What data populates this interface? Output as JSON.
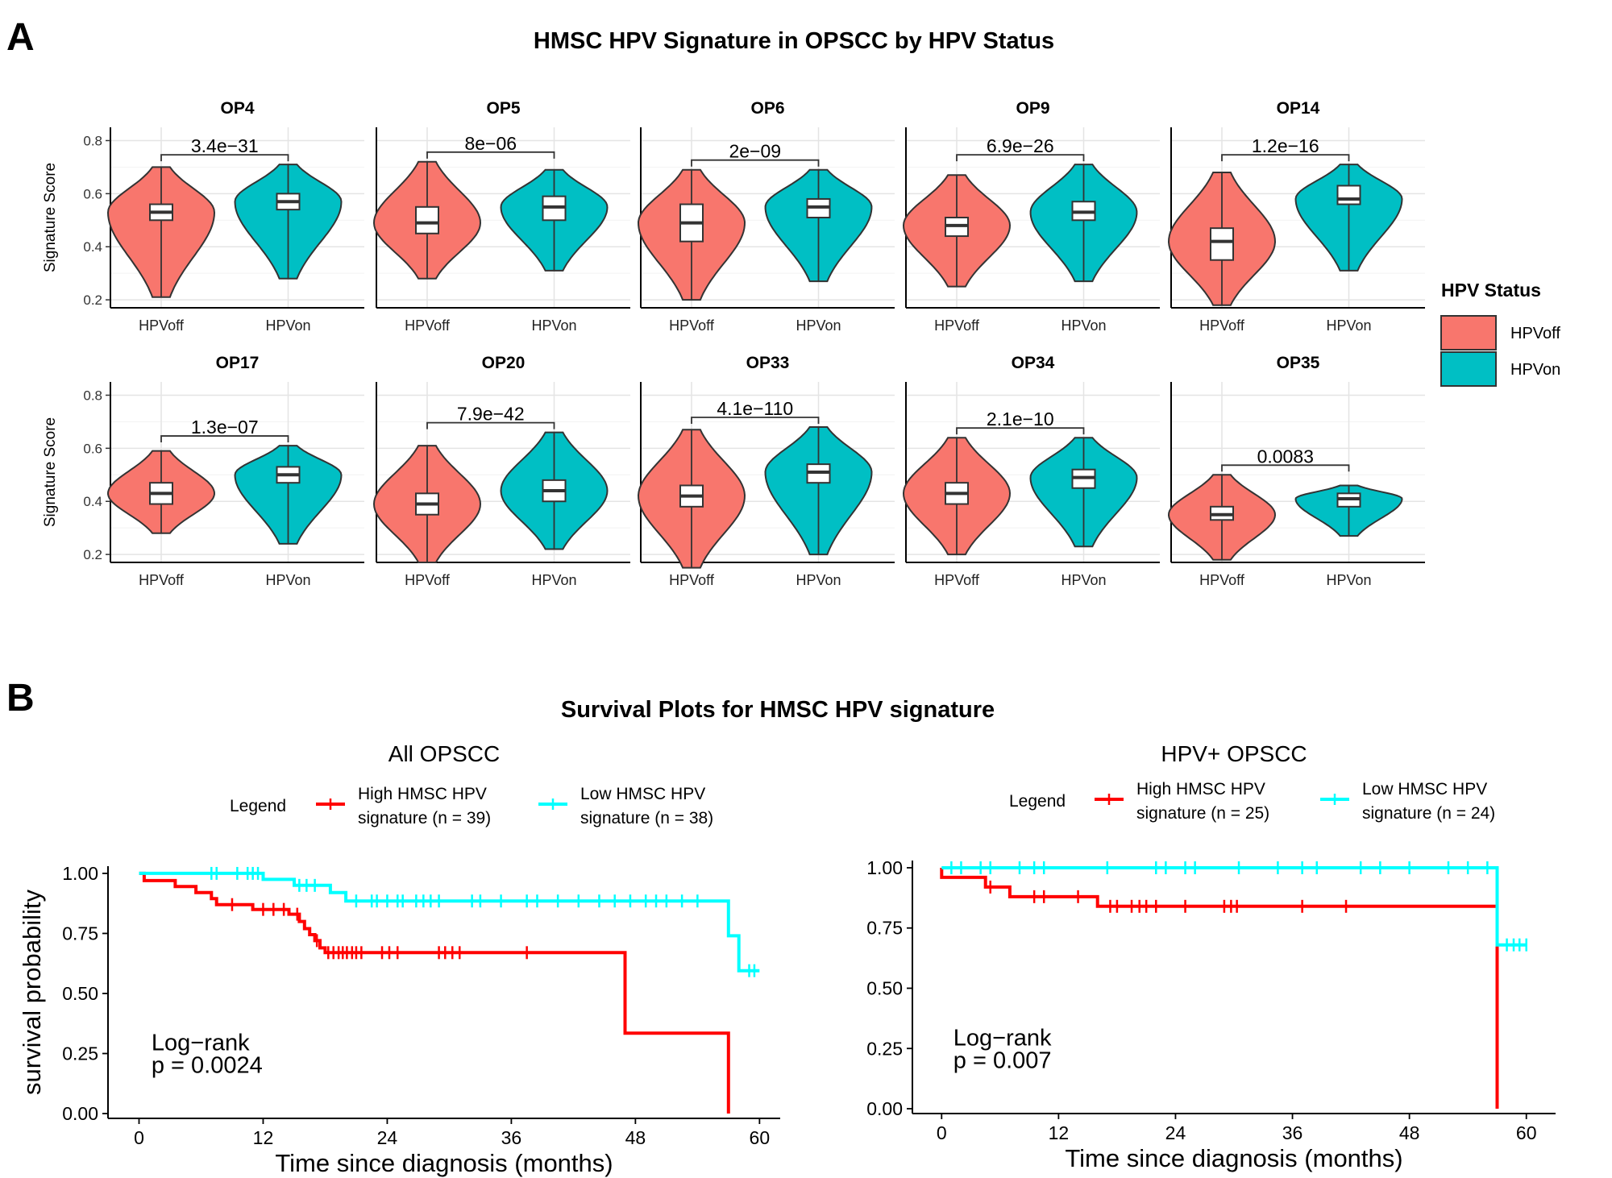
{
  "panel_a": {
    "letter": "A",
    "title": "HMSC HPV Signature in OPSCC by HPV Status",
    "legend": {
      "title": "HPV Status",
      "items": [
        {
          "label": "HPVoff",
          "color": "#F8766D"
        },
        {
          "label": "HPVon",
          "color": "#00BFC4"
        }
      ]
    }
  },
  "panel_b": {
    "letter": "B",
    "title": "Survival Plots for HMSC HPV signature"
  },
  "colors": {
    "hpv_off": "#F8766D",
    "hpv_on": "#00BFC4",
    "km_high": "#FF0000",
    "km_low": "#00FFFF"
  },
  "chart_data": [
    {
      "type": "violin",
      "ylabel": "Signature Score",
      "ylim": [
        0.17,
        0.85
      ],
      "yticks": [
        0.2,
        0.4,
        0.6,
        0.8
      ],
      "categories": [
        "HPVoff",
        "HPVon"
      ],
      "facets": [
        {
          "name": "OP4",
          "p": "3.4e−31",
          "groups": [
            {
              "min": 0.21,
              "q1": 0.5,
              "median": 0.53,
              "q3": 0.56,
              "max": 0.7
            },
            {
              "min": 0.28,
              "q1": 0.54,
              "median": 0.57,
              "q3": 0.6,
              "max": 0.71
            }
          ]
        },
        {
          "name": "OP5",
          "p": "8e−06",
          "groups": [
            {
              "min": 0.28,
              "q1": 0.45,
              "median": 0.49,
              "q3": 0.55,
              "max": 0.72
            },
            {
              "min": 0.31,
              "q1": 0.5,
              "median": 0.55,
              "q3": 0.59,
              "max": 0.69
            }
          ]
        },
        {
          "name": "OP6",
          "p": "2e−09",
          "groups": [
            {
              "min": 0.2,
              "q1": 0.42,
              "median": 0.49,
              "q3": 0.56,
              "max": 0.69
            },
            {
              "min": 0.27,
              "q1": 0.51,
              "median": 0.55,
              "q3": 0.58,
              "max": 0.69
            }
          ]
        },
        {
          "name": "OP9",
          "p": "6.9e−26",
          "groups": [
            {
              "min": 0.25,
              "q1": 0.44,
              "median": 0.48,
              "q3": 0.51,
              "max": 0.67
            },
            {
              "min": 0.27,
              "q1": 0.5,
              "median": 0.53,
              "q3": 0.57,
              "max": 0.71
            }
          ]
        },
        {
          "name": "OP14",
          "p": "1.2e−16",
          "groups": [
            {
              "min": 0.18,
              "q1": 0.35,
              "median": 0.42,
              "q3": 0.47,
              "max": 0.68
            },
            {
              "min": 0.31,
              "q1": 0.56,
              "median": 0.58,
              "q3": 0.63,
              "max": 0.71
            }
          ]
        },
        {
          "name": "OP17",
          "p": "1.3e−07",
          "groups": [
            {
              "min": 0.28,
              "q1": 0.39,
              "median": 0.43,
              "q3": 0.47,
              "max": 0.59
            },
            {
              "min": 0.24,
              "q1": 0.47,
              "median": 0.5,
              "q3": 0.53,
              "max": 0.61
            }
          ]
        },
        {
          "name": "OP20",
          "p": "7.9e−42",
          "groups": [
            {
              "min": 0.17,
              "q1": 0.35,
              "median": 0.39,
              "q3": 0.43,
              "max": 0.61
            },
            {
              "min": 0.22,
              "q1": 0.4,
              "median": 0.44,
              "q3": 0.48,
              "max": 0.66
            }
          ]
        },
        {
          "name": "OP33",
          "p": "4.1e−110",
          "groups": [
            {
              "min": 0.15,
              "q1": 0.38,
              "median": 0.42,
              "q3": 0.46,
              "max": 0.67
            },
            {
              "min": 0.2,
              "q1": 0.47,
              "median": 0.51,
              "q3": 0.54,
              "max": 0.68
            }
          ]
        },
        {
          "name": "OP34",
          "p": "2.1e−10",
          "groups": [
            {
              "min": 0.2,
              "q1": 0.39,
              "median": 0.43,
              "q3": 0.47,
              "max": 0.64
            },
            {
              "min": 0.23,
              "q1": 0.45,
              "median": 0.49,
              "q3": 0.52,
              "max": 0.64
            }
          ]
        },
        {
          "name": "OP35",
          "p": "0.0083",
          "groups": [
            {
              "min": 0.18,
              "q1": 0.33,
              "median": 0.35,
              "q3": 0.38,
              "max": 0.5
            },
            {
              "min": 0.27,
              "q1": 0.38,
              "median": 0.41,
              "q3": 0.43,
              "max": 0.46
            }
          ]
        }
      ]
    },
    {
      "type": "line",
      "step": true,
      "title": "All OPSCC",
      "xlabel": "Time since diagnosis (months)",
      "ylabel": "survival probability",
      "xlim": [
        -3,
        62
      ],
      "ylim": [
        -0.02,
        1.03
      ],
      "xticks": [
        0,
        12,
        24,
        36,
        48,
        60
      ],
      "yticks": [
        "0.00",
        "0.25",
        "0.50",
        "0.75",
        "1.00"
      ],
      "legend": {
        "title": "Legend",
        "placement": "top"
      },
      "annotation": [
        "Log−rank",
        "p = 0.0024"
      ],
      "series": [
        {
          "name": "High HMSC HPV signature (n = 39)",
          "label_lines": [
            "High HMSC HPV",
            "signature (n = 39)"
          ],
          "color": "#FF0000",
          "steps": [
            [
              0,
              1.0
            ],
            [
              0.5,
              0.97
            ],
            [
              3.5,
              0.945
            ],
            [
              5.5,
              0.92
            ],
            [
              7,
              0.895
            ],
            [
              7.5,
              0.87
            ],
            [
              11,
              0.85
            ],
            [
              14.5,
              0.83
            ],
            [
              15.5,
              0.8
            ],
            [
              16,
              0.77
            ],
            [
              16.5,
              0.745
            ],
            [
              17,
              0.72
            ],
            [
              17.5,
              0.69
            ],
            [
              18,
              0.67
            ],
            [
              47,
              0.67
            ],
            [
              47,
              0.335
            ],
            [
              57,
              0.335
            ],
            [
              57,
              0.0
            ]
          ],
          "censor": [
            9,
            12,
            13,
            14,
            15.3,
            17.2,
            18.3,
            18.8,
            19.3,
            19.7,
            20.1,
            20.6,
            21,
            21.5,
            23.5,
            24.2,
            25,
            29,
            29.6,
            30.3,
            31,
            37.5
          ]
        },
        {
          "name": "Low HMSC HPV signature (n = 38)",
          "label_lines": [
            "Low HMSC HPV",
            "signature (n = 38)"
          ],
          "color": "#00FFFF",
          "steps": [
            [
              0,
              1.0
            ],
            [
              12,
              1.0
            ],
            [
              12,
              0.975
            ],
            [
              15,
              0.975
            ],
            [
              15,
              0.95
            ],
            [
              18.5,
              0.95
            ],
            [
              18.5,
              0.92
            ],
            [
              20,
              0.92
            ],
            [
              20,
              0.885
            ],
            [
              57,
              0.885
            ],
            [
              57,
              0.74
            ],
            [
              58,
              0.74
            ],
            [
              58,
              0.595
            ],
            [
              60,
              0.595
            ]
          ],
          "censor": [
            7,
            7.5,
            9.5,
            10.5,
            11,
            11.5,
            15.5,
            16.2,
            17,
            21,
            22.5,
            23,
            24,
            25,
            25.5,
            26.8,
            27.5,
            28.2,
            29,
            32.2,
            33,
            35,
            37.5,
            38.5,
            40.5,
            42.5,
            44.5,
            46,
            47.5,
            49,
            50,
            51,
            52.5,
            54,
            59,
            59.5
          ]
        }
      ]
    },
    {
      "type": "line",
      "step": true,
      "title": "HPV+ OPSCC",
      "xlabel": "Time since diagnosis (months)",
      "ylabel": "",
      "xlim": [
        -3,
        63
      ],
      "ylim": [
        -0.02,
        1.03
      ],
      "xticks": [
        0,
        12,
        24,
        36,
        48,
        60
      ],
      "yticks": [
        "0.00",
        "0.25",
        "0.50",
        "0.75",
        "1.00"
      ],
      "legend": {
        "title": "Legend",
        "placement": "top"
      },
      "annotation": [
        "Log−rank",
        "p = 0.007"
      ],
      "series": [
        {
          "name": "High HMSC HPV signature (n = 25)",
          "label_lines": [
            "High HMSC HPV",
            "signature (n = 25)"
          ],
          "color": "#FF0000",
          "steps": [
            [
              0,
              1.0
            ],
            [
              0,
              0.96
            ],
            [
              4.5,
              0.96
            ],
            [
              4.5,
              0.92
            ],
            [
              7,
              0.92
            ],
            [
              7,
              0.88
            ],
            [
              16,
              0.88
            ],
            [
              16,
              0.84
            ],
            [
              57,
              0.84
            ],
            [
              57,
              0.0
            ]
          ],
          "censor": [
            5,
            9.5,
            10.5,
            14,
            17.3,
            18,
            19.5,
            20.3,
            21,
            22,
            25,
            29,
            29.7,
            30.3,
            37,
            41.5
          ]
        },
        {
          "name": "Low HMSC HPV signature (n = 24)",
          "label_lines": [
            "Low HMSC HPV",
            "signature (n = 24)"
          ],
          "color": "#00FFFF",
          "steps": [
            [
              0,
              1.0
            ],
            [
              57,
              1.0
            ],
            [
              57,
              0.68
            ],
            [
              60,
              0.68
            ]
          ],
          "censor": [
            1,
            2,
            4,
            5,
            8,
            9.5,
            10.5,
            17,
            22,
            23,
            25,
            26,
            30.5,
            34.5,
            37,
            38.5,
            43,
            45,
            48,
            52,
            54,
            56,
            58,
            58.7,
            59.3,
            60
          ]
        }
      ]
    }
  ]
}
